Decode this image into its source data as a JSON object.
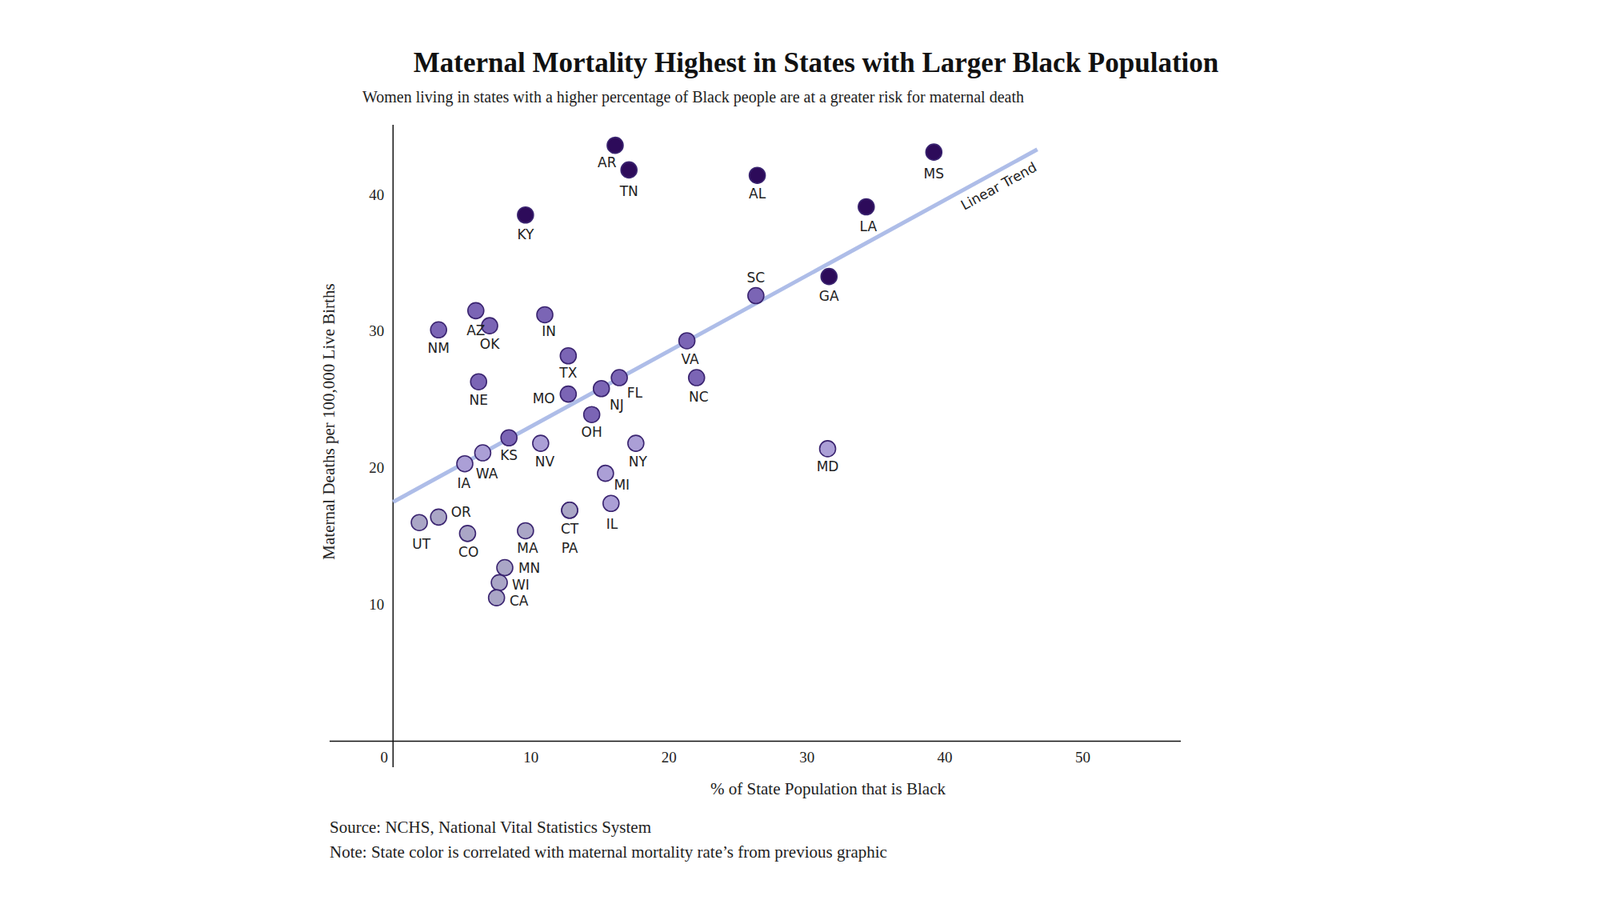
{
  "chart_data": {
    "type": "scatter",
    "title": "Maternal Mortality Highest in States with Larger Black Population",
    "subtitle": "Women living in states with a higher percentage of Black people are at a greater risk for maternal death",
    "x_label": "% of State Population that is Black",
    "y_label": "Maternal Deaths per 100,000 Live Births",
    "source": "Source: NCHS, National Vital Statistics System",
    "note": "Note: State color is correlated with maternal mortality rate’s from previous graphic",
    "xlim": [
      -4.6,
      57.1
    ],
    "ylim": [
      -1.9,
      45.1
    ],
    "xticks": [
      0,
      10,
      20,
      30,
      40,
      50
    ],
    "yticks": [
      10,
      20,
      30,
      40
    ],
    "grid": false,
    "marker": "circle",
    "labels": [
      "AR",
      "TN",
      "AL",
      "MS",
      "LA",
      "KY",
      "GA",
      "SC",
      "AZ",
      "IN",
      "OK",
      "NM",
      "TX",
      "VA",
      "NE",
      "FL",
      "NC",
      "MO",
      "NJ",
      "OH",
      "KS",
      "NV",
      "NY",
      "MD",
      "WA",
      "IA",
      "MI",
      "IL",
      "CT",
      "PA",
      "UT",
      "OR",
      "CO",
      "MA",
      "MN",
      "WI",
      "CA"
    ],
    "x": [
      16.1,
      17.1,
      26.4,
      39.2,
      34.3,
      9.6,
      31.6,
      26.3,
      6.0,
      11.0,
      7.0,
      3.3,
      12.7,
      21.3,
      6.2,
      16.4,
      22.0,
      12.7,
      15.1,
      14.4,
      8.4,
      10.7,
      17.6,
      31.5,
      6.5,
      5.2,
      15.4,
      15.8,
      12.8,
      12.8,
      1.9,
      3.3,
      5.4,
      9.6,
      8.1,
      7.7,
      7.5
    ],
    "values": [
      43.6,
      41.8,
      41.4,
      43.1,
      39.1,
      38.5,
      34.0,
      32.6,
      31.5,
      31.2,
      30.4,
      30.1,
      28.2,
      29.3,
      26.3,
      26.6,
      26.6,
      25.4,
      25.8,
      23.9,
      22.2,
      21.8,
      21.8,
      21.4,
      21.1,
      20.3,
      19.6,
      17.4,
      16.9,
      16.9,
      16.0,
      16.4,
      15.2,
      15.4,
      12.7,
      11.6,
      10.5
    ],
    "colors": [
      "#2d0b5a",
      "#2d0b5a",
      "#2d0b5a",
      "#2d0b5a",
      "#2d0b5a",
      "#2d0b5a",
      "#2d0b5a",
      "#7b65b5",
      "#7b65b5",
      "#7b65b5",
      "#7b65b5",
      "#7b65b5",
      "#7b65b5",
      "#7b65b5",
      "#7b65b5",
      "#7b65b5",
      "#7b65b5",
      "#7b65b5",
      "#7b65b5",
      "#7b65b5",
      "#7b65b5",
      "#ab9fd6",
      "#ab9fd6",
      "#ab9fd6",
      "#ab9fd6",
      "#ab9fd6",
      "#ab9fd6",
      "#ab9fd6",
      "#aaa6c6",
      "#aaa6c6",
      "#aaa6c6",
      "#aaa6c6",
      "#aaa6c6",
      "#aaa6c6",
      "#aaa6c6",
      "#aaa6c6",
      "#aaa6c6"
    ],
    "trend_line": {
      "label": "Linear Trend",
      "type": "line",
      "x": [
        0,
        46.7
      ],
      "values": [
        17.5,
        43.3
      ],
      "color": "#aebde8"
    }
  }
}
